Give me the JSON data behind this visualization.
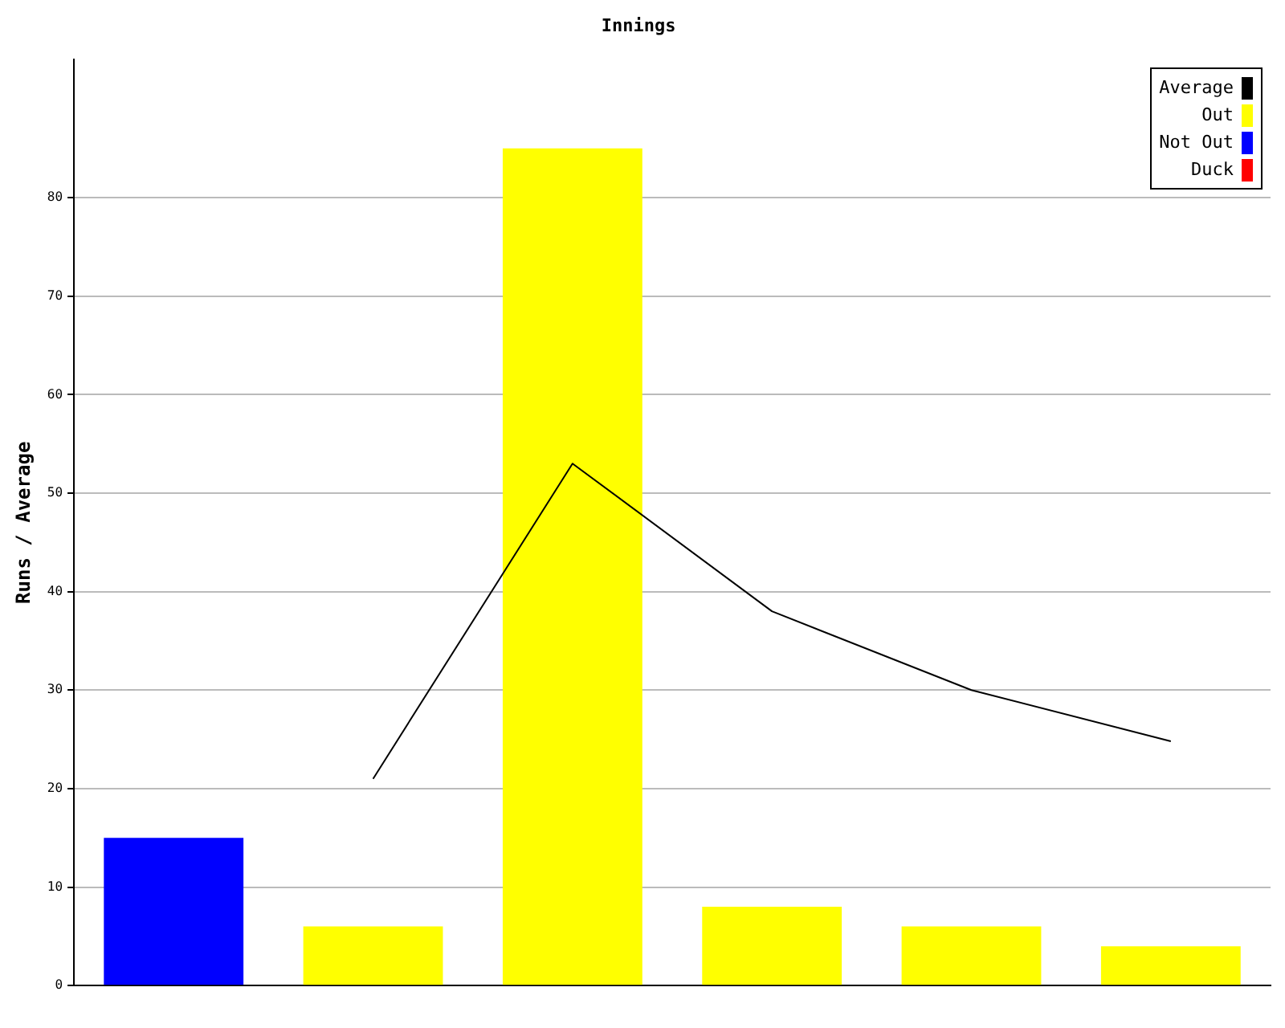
{
  "chart_data": {
    "type": "bar",
    "title": "Innings",
    "ylabel": "Runs / Average",
    "categories": [
      null,
      null,
      null,
      null,
      null,
      null
    ],
    "series": [
      {
        "name": "Average",
        "type": "line",
        "color": "#000000",
        "values": [
          null,
          21,
          53,
          38,
          30,
          24.8
        ]
      },
      {
        "name": "Out",
        "color": "#ffff00",
        "values": [
          null,
          6,
          85,
          8,
          6,
          4
        ]
      },
      {
        "name": "Not Out",
        "color": "#0000ff",
        "values": [
          15,
          null,
          null,
          null,
          null,
          null
        ]
      },
      {
        "name": "Duck",
        "color": "#ff0000",
        "values": [
          null,
          null,
          null,
          null,
          null,
          null
        ]
      }
    ],
    "ylim": [
      0,
      94
    ],
    "yticks": [
      0,
      10,
      20,
      30,
      40,
      50,
      60,
      70,
      80
    ],
    "grid": "y",
    "legend": "top right",
    "marker": "none"
  }
}
